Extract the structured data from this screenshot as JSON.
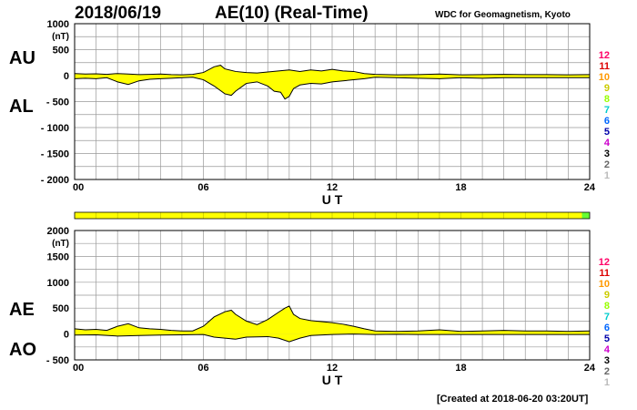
{
  "header": {
    "date": "2018/06/19",
    "title": "AE(10) (Real-Time)",
    "source": "WDC for Geomagnetism, Kyoto"
  },
  "footer": {
    "created": "[Created at 2018-06-20 03:20UT]"
  },
  "colors": {
    "fill": "#ffff00",
    "line": "#000000",
    "grid": "#999999",
    "status_bar": "#ffff00",
    "status_end": "#66ff33"
  },
  "station_scale": [
    {
      "label": "12",
      "color": "#ff0066"
    },
    {
      "label": "11",
      "color": "#dd0000"
    },
    {
      "label": "10",
      "color": "#ff9900"
    },
    {
      "label": "9",
      "color": "#cccc00"
    },
    {
      "label": "8",
      "color": "#99ff00"
    },
    {
      "label": "7",
      "color": "#00cccc"
    },
    {
      "label": "6",
      "color": "#0066ff"
    },
    {
      "label": "5",
      "color": "#0000aa"
    },
    {
      "label": "4",
      "color": "#cc00cc"
    },
    {
      "label": "3",
      "color": "#000000"
    },
    {
      "label": "2",
      "color": "#666666"
    },
    {
      "label": "1",
      "color": "#bbbbbb"
    }
  ],
  "status_bar": {
    "coverage_fraction": 0.985
  },
  "chart_data": [
    {
      "type": "area",
      "upper_label": "AU",
      "lower_label": "AL",
      "unit": "(nT)",
      "xlabel": "U T",
      "xlim": [
        0,
        24
      ],
      "ylim": [
        -2000,
        1000
      ],
      "x_ticks": [
        "00",
        "06",
        "12",
        "18",
        "24"
      ],
      "y_ticks": [
        "1000",
        "500",
        "0",
        "- 500",
        "- 1000",
        "- 1500",
        "- 2000"
      ],
      "grid": true,
      "series": [
        {
          "name": "AU",
          "x": [
            0,
            0.5,
            1,
            1.5,
            2,
            2.5,
            3,
            3.5,
            4,
            4.5,
            5,
            5.5,
            6,
            6.5,
            6.8,
            7,
            7.5,
            8,
            8.5,
            9,
            9.5,
            10,
            10.5,
            11,
            11.5,
            12,
            12.5,
            13,
            13.5,
            14,
            15,
            16,
            17,
            18,
            19,
            20,
            21,
            22,
            23,
            24
          ],
          "values": [
            40,
            30,
            35,
            25,
            40,
            30,
            20,
            25,
            30,
            20,
            15,
            25,
            60,
            170,
            200,
            130,
            80,
            60,
            50,
            70,
            90,
            110,
            80,
            110,
            90,
            120,
            90,
            80,
            40,
            25,
            15,
            20,
            30,
            15,
            20,
            25,
            20,
            20,
            15,
            20
          ]
        },
        {
          "name": "AL",
          "x": [
            0,
            0.5,
            1,
            1.5,
            2,
            2.5,
            3,
            3.5,
            4,
            4.5,
            5,
            5.5,
            6,
            6.5,
            7,
            7.3,
            7.5,
            8,
            8.5,
            9,
            9.3,
            9.6,
            9.8,
            10,
            10.2,
            10.5,
            11,
            11.5,
            12,
            12.5,
            13,
            13.5,
            14,
            15,
            16,
            17,
            18,
            19,
            20,
            21,
            22,
            23,
            24
          ],
          "values": [
            -60,
            -50,
            -60,
            -40,
            -120,
            -170,
            -100,
            -70,
            -60,
            -50,
            -40,
            -30,
            -80,
            -200,
            -350,
            -380,
            -300,
            -150,
            -120,
            -200,
            -300,
            -320,
            -450,
            -400,
            -250,
            -180,
            -150,
            -160,
            -120,
            -100,
            -80,
            -60,
            -30,
            -40,
            -50,
            -60,
            -40,
            -50,
            -40,
            -40,
            -40,
            -40,
            -40
          ]
        }
      ]
    },
    {
      "type": "area",
      "upper_label": "AE",
      "lower_label": "AO",
      "unit": "(nT)",
      "xlabel": "U T",
      "xlim": [
        0,
        24
      ],
      "ylim": [
        -500,
        2000
      ],
      "x_ticks": [
        "00",
        "06",
        "12",
        "18",
        "24"
      ],
      "y_ticks": [
        "2000",
        "1500",
        "1000",
        "500",
        "0",
        "- 500"
      ],
      "grid": true,
      "series": [
        {
          "name": "AE",
          "x": [
            0,
            0.5,
            1,
            1.5,
            2,
            2.5,
            3,
            3.5,
            4,
            4.5,
            5,
            5.5,
            6,
            6.5,
            7,
            7.3,
            7.5,
            8,
            8.5,
            9,
            9.5,
            9.8,
            10,
            10.2,
            10.5,
            11,
            11.5,
            12,
            12.5,
            13,
            13.5,
            14,
            15,
            16,
            17,
            18,
            19,
            20,
            21,
            22,
            23,
            24
          ],
          "values": [
            100,
            80,
            90,
            70,
            150,
            200,
            120,
            100,
            90,
            70,
            60,
            60,
            150,
            330,
            430,
            460,
            380,
            250,
            180,
            280,
            420,
            500,
            540,
            380,
            300,
            260,
            240,
            220,
            190,
            150,
            100,
            60,
            50,
            60,
            80,
            50,
            60,
            70,
            60,
            60,
            50,
            60
          ]
        },
        {
          "name": "AO",
          "x": [
            0,
            1,
            2,
            3,
            4,
            5,
            6,
            6.5,
            7,
            7.5,
            8,
            9,
            9.5,
            10,
            10.5,
            11,
            12,
            13,
            14,
            15,
            16,
            18,
            20,
            22,
            24
          ],
          "values": [
            -20,
            -15,
            -40,
            -30,
            -20,
            -15,
            -10,
            -60,
            -80,
            -100,
            -60,
            -50,
            -80,
            -150,
            -80,
            -30,
            -10,
            0,
            -10,
            -5,
            -10,
            -10,
            -10,
            -10,
            -10
          ]
        }
      ]
    }
  ]
}
